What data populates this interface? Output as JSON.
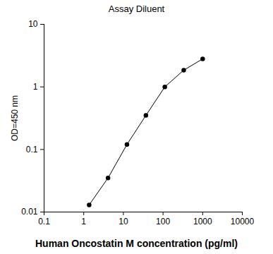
{
  "chart_data": {
    "type": "line",
    "title": "Assay Diluent",
    "x_label": "Human Oncostatin M concentration (pg/ml)",
    "y_label": "OD=450 nm",
    "x": [
      1.37,
      4.1,
      12.3,
      37,
      111,
      333,
      1000
    ],
    "values": [
      0.013,
      0.035,
      0.12,
      0.35,
      1.0,
      1.85,
      2.8
    ],
    "color": "#000000",
    "marker": "circle",
    "line_style": "solid",
    "log": true,
    "grid": false,
    "xlim": [
      0.1,
      10000
    ],
    "xticks": [
      0.1,
      1,
      10,
      100,
      1000,
      10000
    ],
    "ylim": [
      0.01,
      10
    ],
    "yticks": [
      0.01,
      0.1,
      1,
      10
    ]
  }
}
